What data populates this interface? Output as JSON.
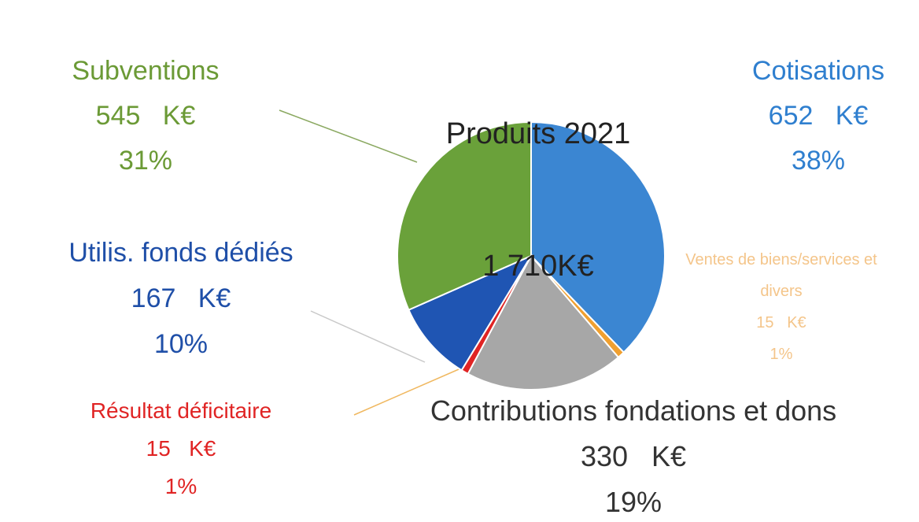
{
  "chart_data": {
    "type": "pie",
    "title": "Produits 2021",
    "subtitle": "1 710K€",
    "categories": [
      "Cotisations",
      "Ventes de biens/services et divers",
      "Contributions fondations et dons",
      "Résultat déficitaire",
      "Utilis. fonds dédiés",
      "Subventions"
    ],
    "values": [
      652,
      15,
      330,
      15,
      167,
      545
    ],
    "value_labels": [
      "652   K€",
      "15   K€",
      "330   K€",
      "15   K€",
      "167   K€",
      "545   K€"
    ],
    "percent_labels": [
      "38%",
      "1%",
      "19%",
      "1%",
      "10%",
      "31%"
    ],
    "colors": [
      "#3b86d2",
      "#f0a030",
      "#a7a7a7",
      "#e02424",
      "#1f55b3",
      "#6aa13a"
    ]
  }
}
